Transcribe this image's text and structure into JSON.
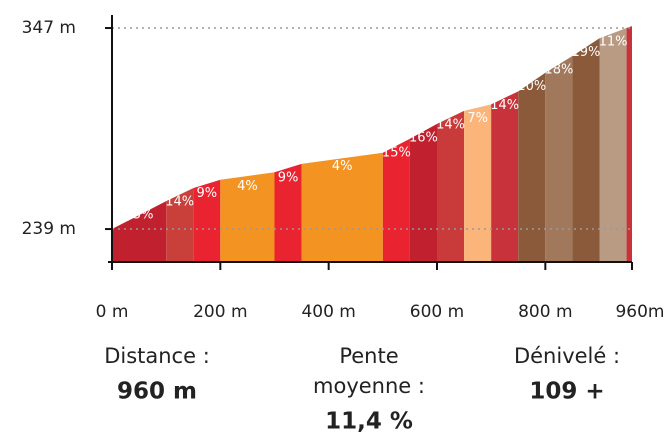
{
  "chart_data": {
    "type": "area",
    "x": [
      0,
      100,
      150,
      200,
      300,
      350,
      500,
      550,
      600,
      650,
      700,
      750,
      800,
      850,
      900,
      950,
      960
    ],
    "values": [
      239,
      254,
      261,
      265.5,
      269.5,
      274,
      280,
      287.5,
      295.5,
      302.5,
      306,
      313,
      323,
      332,
      341.5,
      347,
      348
    ],
    "segments": [
      {
        "color": "#c1202f",
        "label": "15%"
      },
      {
        "color": "#c9403a",
        "label": "14%"
      },
      {
        "color": "#ea2330",
        "label": "9%"
      },
      {
        "color": "#f39322",
        "label": "4%"
      },
      {
        "color": "#ea2330",
        "label": "9%"
      },
      {
        "color": "#f39322",
        "label": "4%"
      },
      {
        "color": "#ea2330",
        "label": "15%"
      },
      {
        "color": "#c1202f",
        "label": "16%"
      },
      {
        "color": "#c93a3a",
        "label": "14%"
      },
      {
        "color": "#fbb57a",
        "label": "7%"
      },
      {
        "color": "#c8323a",
        "label": "14%"
      },
      {
        "color": "#8b5a3a",
        "label": "20%"
      },
      {
        "color": "#a2785c",
        "label": "18%"
      },
      {
        "color": "#8b5a3a",
        "label": "19%"
      },
      {
        "color": "#b89b82",
        "label": "11%"
      },
      {
        "color": "#c8323a",
        "label": null
      }
    ],
    "xlim": [
      0,
      960
    ],
    "ylim": [
      221.3,
      354
    ],
    "xticks": [
      {
        "value": 0,
        "label": "0 m"
      },
      {
        "value": 200,
        "label": "200 m"
      },
      {
        "value": 400,
        "label": "400 m"
      },
      {
        "value": 600,
        "label": "600 m"
      },
      {
        "value": 800,
        "label": "800 m"
      },
      {
        "value": 960,
        "label": "960m"
      }
    ],
    "yticks": [
      {
        "value": 239,
        "label": "239 m"
      },
      {
        "value": 347,
        "label": "347 m"
      }
    ],
    "grid": true
  },
  "stats": [
    {
      "label": [
        "Distance :"
      ],
      "value": "960 m"
    },
    {
      "label": [
        "Pente",
        "moyenne :"
      ],
      "value": "11,4 %"
    },
    {
      "label": [
        "Dénivelé :"
      ],
      "value": "109 +"
    }
  ]
}
